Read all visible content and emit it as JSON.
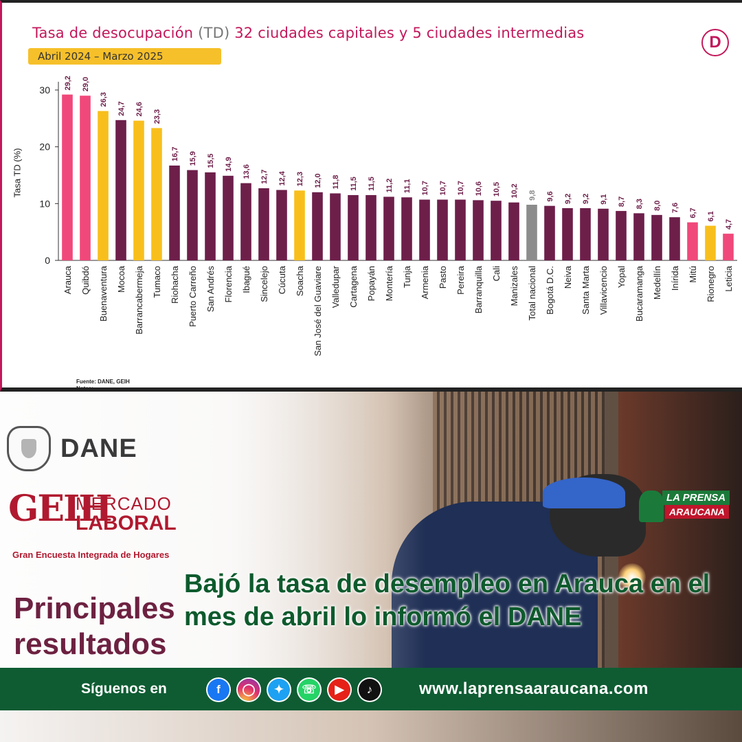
{
  "chart_title_main": "Tasa de desocupación",
  "chart_title_td": "(TD)",
  "chart_title_rest": "32 ciudades capitales y 5 ciudades intermedias",
  "period": "Abril 2024 – Marzo 2025",
  "logo_letter": "D",
  "source_line1": "Fuente: DANE, GEIH",
  "source_line2": "Notas:",
  "colors": {
    "capital": "#6d1f4a",
    "intermediate": "#f8bf1c",
    "highlight": "#f0487a",
    "national": "#8c8c8c",
    "value_label": "#6d1f4a",
    "title": "#c2185b"
  },
  "chart_data": {
    "type": "bar",
    "title": "Tasa de desocupación (TD) 32 ciudades capitales y 5 ciudades intermedias",
    "subtitle": "Abril 2024 – Marzo 2025",
    "ylabel": "Tasa TD (%)",
    "xlabel": "",
    "ylim": [
      0,
      30
    ],
    "yticks": [
      0,
      10,
      20,
      30
    ],
    "grid": false,
    "categories": [
      "Arauca",
      "Quibdó",
      "Buenaventura",
      "Mocoa",
      "Barrancabermeja",
      "Tumaco",
      "Riohacha",
      "Puerto Carreño",
      "San Andrés",
      "Florencia",
      "Ibagué",
      "Sincelejo",
      "Cúcuta",
      "Soacha",
      "San José del Guaviare",
      "Valledupar",
      "Cartagena",
      "Popayán",
      "Montería",
      "Tunja",
      "Armenia",
      "Pasto",
      "Pereira",
      "Barranquilla",
      "Cali",
      "Manizales",
      "Total nacional",
      "Bogotá D.C.",
      "Neiva",
      "Santa Marta",
      "Villavicencio",
      "Yopal",
      "Bucaramanga",
      "Medellín",
      "Inírida",
      "Mitú",
      "Rionegro",
      "Leticia"
    ],
    "values": [
      29.2,
      29.0,
      26.3,
      24.7,
      24.6,
      23.3,
      16.7,
      15.9,
      15.5,
      14.9,
      13.6,
      12.7,
      12.4,
      12.3,
      12.0,
      11.8,
      11.5,
      11.5,
      11.2,
      11.1,
      10.7,
      10.7,
      10.7,
      10.6,
      10.5,
      10.2,
      9.8,
      9.6,
      9.2,
      9.2,
      9.1,
      8.7,
      8.3,
      8.0,
      7.6,
      6.7,
      6.1,
      4.7
    ],
    "value_labels": [
      "29,2",
      "29,0",
      "26,3",
      "24,7",
      "24,6",
      "23,3",
      "16,7",
      "15,9",
      "15,5",
      "14,9",
      "13,6",
      "12,7",
      "12,4",
      "12,3",
      "12,0",
      "11,8",
      "11,5",
      "11,5",
      "11,2",
      "11,1",
      "10,7",
      "10,7",
      "10,7",
      "10,6",
      "10,5",
      "10,2",
      "9,8",
      "9,6",
      "9,2",
      "9,2",
      "9,1",
      "8,7",
      "8,3",
      "8,0",
      "7,6",
      "6,7",
      "6,1",
      "4,7"
    ],
    "bar_groups": [
      "highlight",
      "highlight",
      "intermediate",
      "capital",
      "intermediate",
      "intermediate",
      "capital",
      "capital",
      "capital",
      "capital",
      "capital",
      "capital",
      "capital",
      "intermediate",
      "capital",
      "capital",
      "capital",
      "capital",
      "capital",
      "capital",
      "capital",
      "capital",
      "capital",
      "capital",
      "capital",
      "capital",
      "national",
      "capital",
      "capital",
      "capital",
      "capital",
      "capital",
      "capital",
      "capital",
      "capital",
      "highlight",
      "intermediate",
      "highlight"
    ]
  },
  "dane_label": "DANE",
  "geih_logo": "GEIH",
  "geih_line1": "MERCADO",
  "geih_line2": "LABORAL",
  "geih_subtitle": "Gran Encuesta Integrada de Hogares",
  "principales_line1": "Principales",
  "principales_line2": "resultados",
  "headline": "Bajó la tasa de desempleo en Arauca en el mes de abril lo informó el DANE",
  "brand_line1": "LA PRENSA",
  "brand_line2": "ARAUCANA",
  "footer_follow": "Síguenos en",
  "social_icons": [
    "facebook-icon",
    "instagram-icon",
    "twitter-icon",
    "whatsapp-icon",
    "youtube-icon",
    "tiktok-icon"
  ],
  "footer_url": "www.laprensaaraucana.com"
}
